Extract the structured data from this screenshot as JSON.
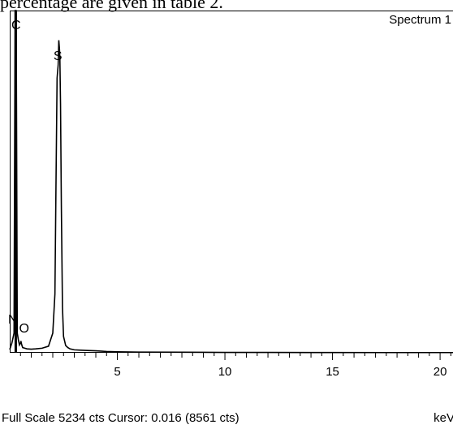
{
  "header": {
    "caption_fragment": "percentage are given in table 2."
  },
  "chart_data": {
    "type": "line",
    "title": "Spectrum 1",
    "xlabel": "keV",
    "ylabel": "",
    "xlim": [
      0,
      20.6
    ],
    "ylim": [
      0,
      5234
    ],
    "x_ticks": [
      5,
      10,
      15,
      20
    ],
    "x_tick_labels": [
      "5",
      "10",
      "15",
      "20"
    ],
    "grid": false,
    "series": [
      {
        "x": [
          0.0,
          0.1,
          0.2,
          0.25,
          0.28,
          0.3,
          0.35,
          0.4,
          0.45,
          0.5,
          0.52,
          0.55,
          0.6,
          0.7,
          0.8,
          1.0,
          1.2,
          1.5,
          1.8,
          2.0,
          2.1,
          2.15,
          2.2,
          2.25,
          2.28,
          2.31,
          2.33,
          2.36,
          2.4,
          2.45,
          2.5,
          2.6,
          2.7,
          2.8,
          3.0,
          3.3,
          3.6,
          4.0,
          4.5,
          5.0,
          6.0,
          8.0,
          10.0,
          12.0,
          15.0,
          18.0,
          20.6
        ],
        "y": [
          50,
          150,
          300,
          5234,
          5234,
          5234,
          300,
          200,
          120,
          150,
          180,
          130,
          80,
          70,
          60,
          55,
          60,
          70,
          100,
          300,
          900,
          2600,
          4200,
          4400,
          4780,
          4650,
          4500,
          3800,
          2200,
          700,
          250,
          110,
          80,
          60,
          45,
          40,
          35,
          30,
          20,
          15,
          10,
          8,
          6,
          5,
          4,
          3,
          3
        ]
      }
    ],
    "annotations": [
      {
        "label": "C",
        "x": 0.28,
        "y": 5234
      },
      {
        "label": "S",
        "x": 2.31,
        "y": 4780
      },
      {
        "label": "N",
        "x": 0.39,
        "y": 390
      },
      {
        "label": "O",
        "x": 0.52,
        "y": 180
      }
    ]
  },
  "footer": {
    "full_scale_text": "Full Scale 5234 cts Cursor: 0.016  (8561 cts)"
  }
}
